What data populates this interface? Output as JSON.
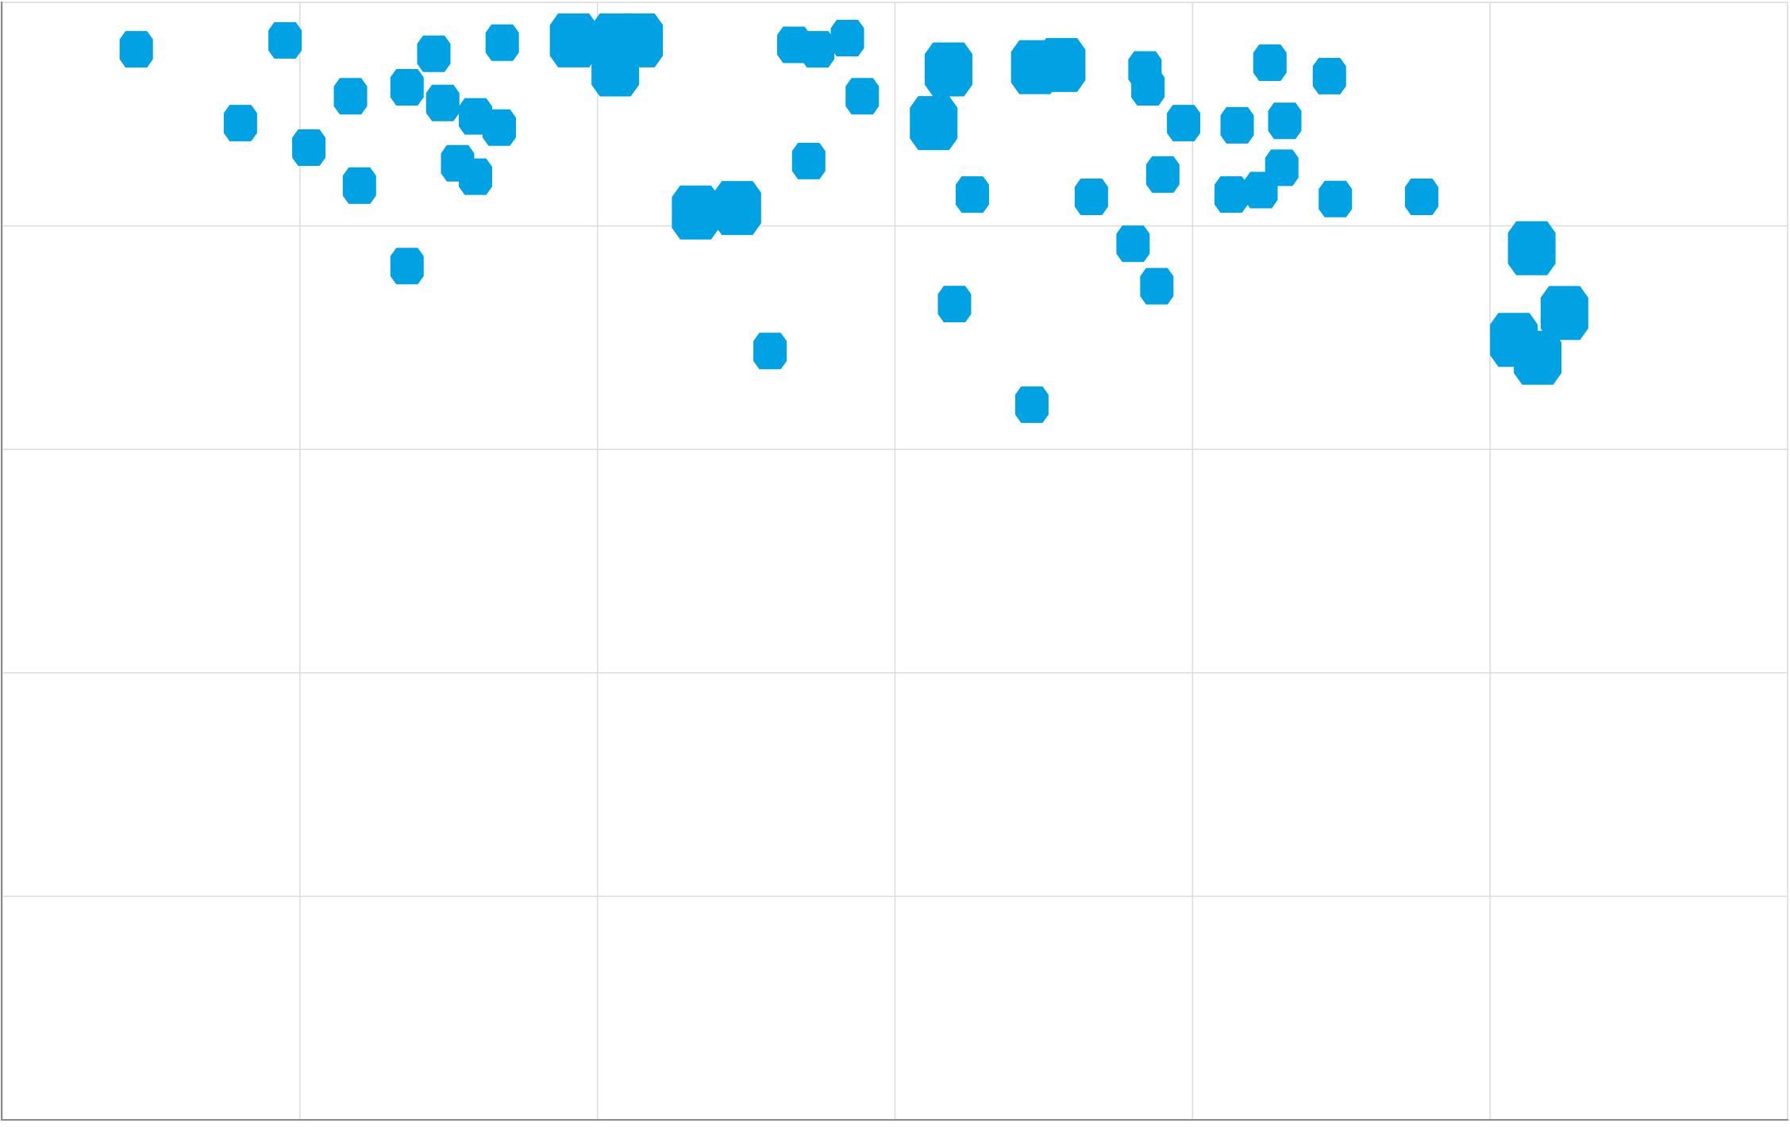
{
  "chart_data": {
    "type": "scatter",
    "title": "",
    "xlabel": "",
    "ylabel": "",
    "xlim": [
      0,
      6
    ],
    "ylim": [
      0,
      5
    ],
    "grid": true,
    "marker_color": "#00a2e3",
    "series": [
      {
        "points": [
          {
            "x": 0.45,
            "y": 4.79,
            "size": "small"
          },
          {
            "x": 0.95,
            "y": 4.83,
            "size": "small"
          },
          {
            "x": 0.8,
            "y": 4.46,
            "size": "small"
          },
          {
            "x": 1.03,
            "y": 4.35,
            "size": "small"
          },
          {
            "x": 1.17,
            "y": 4.58,
            "size": "small"
          },
          {
            "x": 1.2,
            "y": 4.18,
            "size": "small"
          },
          {
            "x": 1.36,
            "y": 4.62,
            "size": "small"
          },
          {
            "x": 1.45,
            "y": 4.77,
            "size": "small"
          },
          {
            "x": 1.48,
            "y": 4.55,
            "size": "small"
          },
          {
            "x": 1.59,
            "y": 4.49,
            "size": "small"
          },
          {
            "x": 1.67,
            "y": 4.44,
            "size": "small"
          },
          {
            "x": 1.53,
            "y": 4.28,
            "size": "small"
          },
          {
            "x": 1.59,
            "y": 4.22,
            "size": "small"
          },
          {
            "x": 1.68,
            "y": 4.82,
            "size": "small"
          },
          {
            "x": 1.36,
            "y": 3.82,
            "size": "small"
          },
          {
            "x": 2.58,
            "y": 3.44,
            "size": "small"
          },
          {
            "x": 2.66,
            "y": 4.81,
            "size": "small"
          },
          {
            "x": 2.74,
            "y": 4.79,
            "size": "small"
          },
          {
            "x": 2.84,
            "y": 4.84,
            "size": "small"
          },
          {
            "x": 2.89,
            "y": 4.58,
            "size": "small"
          },
          {
            "x": 2.71,
            "y": 4.29,
            "size": "small"
          },
          {
            "x": 3.26,
            "y": 4.14,
            "size": "small"
          },
          {
            "x": 3.2,
            "y": 3.65,
            "size": "small"
          },
          {
            "x": 3.46,
            "y": 3.2,
            "size": "small"
          },
          {
            "x": 3.66,
            "y": 4.13,
            "size": "small"
          },
          {
            "x": 3.8,
            "y": 3.92,
            "size": "small"
          },
          {
            "x": 3.88,
            "y": 3.73,
            "size": "small"
          },
          {
            "x": 3.84,
            "y": 4.7,
            "size": "small"
          },
          {
            "x": 3.85,
            "y": 4.62,
            "size": "small"
          },
          {
            "x": 3.97,
            "y": 4.46,
            "size": "small"
          },
          {
            "x": 3.9,
            "y": 4.23,
            "size": "small"
          },
          {
            "x": 4.13,
            "y": 4.14,
            "size": "small"
          },
          {
            "x": 4.23,
            "y": 4.16,
            "size": "small"
          },
          {
            "x": 4.3,
            "y": 4.26,
            "size": "small"
          },
          {
            "x": 4.15,
            "y": 4.45,
            "size": "small"
          },
          {
            "x": 4.31,
            "y": 4.47,
            "size": "small"
          },
          {
            "x": 4.26,
            "y": 4.73,
            "size": "small"
          },
          {
            "x": 4.46,
            "y": 4.67,
            "size": "small"
          },
          {
            "x": 4.48,
            "y": 4.12,
            "size": "small"
          },
          {
            "x": 4.77,
            "y": 4.13,
            "size": "small"
          },
          {
            "x": 1.92,
            "y": 4.83,
            "size": "large"
          },
          {
            "x": 2.06,
            "y": 4.83,
            "size": "large"
          },
          {
            "x": 2.14,
            "y": 4.83,
            "size": "large"
          },
          {
            "x": 2.06,
            "y": 4.7,
            "size": "large"
          },
          {
            "x": 2.33,
            "y": 4.06,
            "size": "large"
          },
          {
            "x": 2.47,
            "y": 4.08,
            "size": "large"
          },
          {
            "x": 3.18,
            "y": 4.7,
            "size": "large"
          },
          {
            "x": 3.13,
            "y": 4.46,
            "size": "large"
          },
          {
            "x": 3.47,
            "y": 4.71,
            "size": "large"
          },
          {
            "x": 3.56,
            "y": 4.72,
            "size": "large"
          },
          {
            "x": 5.14,
            "y": 3.9,
            "size": "large"
          },
          {
            "x": 5.25,
            "y": 3.61,
            "size": "large"
          },
          {
            "x": 5.08,
            "y": 3.49,
            "size": "large"
          },
          {
            "x": 5.16,
            "y": 3.41,
            "size": "large"
          }
        ]
      }
    ]
  }
}
